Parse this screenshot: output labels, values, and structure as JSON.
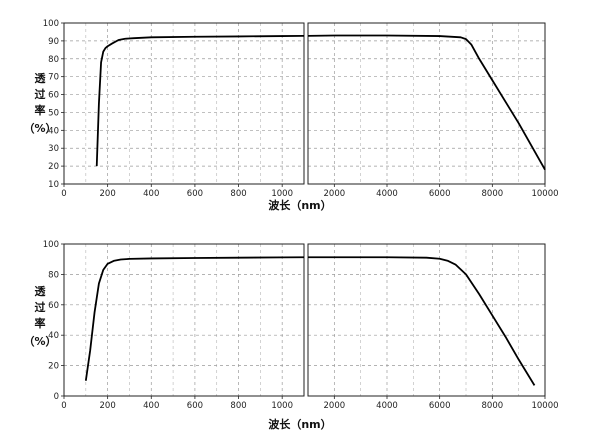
{
  "chart_data": [
    {
      "type": "line",
      "ylabel_chars": [
        "透",
        "过",
        "率",
        "（%）"
      ],
      "xlabel": "波长（nm）",
      "ylim": [
        10,
        100
      ],
      "yticks": [
        "10",
        "20",
        "30",
        "40",
        "50",
        "60",
        "70",
        "80",
        "90",
        "100"
      ],
      "grid": true,
      "panels": [
        {
          "xlim": [
            0,
            1100
          ],
          "xticks": [
            "0",
            "200",
            "400",
            "600",
            "800",
            "1000"
          ],
          "series": [
            {
              "x": [
                150,
                160,
                170,
                180,
                190,
                200,
                220,
                250,
                280,
                320,
                400,
                600,
                800,
                1000,
                1100
              ],
              "y": [
                20,
                55,
                78,
                84,
                86,
                87,
                88.5,
                90.5,
                91.2,
                91.5,
                92,
                92.3,
                92.5,
                92.7,
                92.8
              ]
            }
          ]
        },
        {
          "xlim": [
            1000,
            10000
          ],
          "xticks": [
            "2000",
            "4000",
            "6000",
            "8000",
            "10000"
          ],
          "series": [
            {
              "x": [
                1000,
                2000,
                4000,
                6000,
                6800,
                7000,
                7200,
                7500,
                8000,
                9000,
                10000
              ],
              "y": [
                92.8,
                93,
                93,
                92.7,
                92,
                91,
                88,
                80,
                68,
                44,
                18
              ]
            }
          ]
        }
      ]
    },
    {
      "type": "line",
      "ylabel_chars": [
        "透",
        "过",
        "率",
        "（%）"
      ],
      "xlabel": "波长（nm）",
      "ylim": [
        0,
        100
      ],
      "yticks": [
        "0",
        "20",
        "40",
        "60",
        "80",
        "100"
      ],
      "grid": true,
      "panels": [
        {
          "xlim": [
            0,
            1100
          ],
          "xticks": [
            "0",
            "200",
            "400",
            "600",
            "800",
            "1000"
          ],
          "series": [
            {
              "x": [
                100,
                120,
                140,
                160,
                180,
                200,
                230,
                260,
                300,
                400,
                600,
                800,
                1000,
                1100
              ],
              "y": [
                10,
                30,
                55,
                74,
                83,
                87,
                89,
                89.8,
                90.2,
                90.5,
                90.8,
                91,
                91.2,
                91.3
              ]
            }
          ]
        },
        {
          "xlim": [
            1000,
            10000
          ],
          "xticks": [
            "2000",
            "4000",
            "6000",
            "8000",
            "10000"
          ],
          "series": [
            {
              "x": [
                1000,
                2000,
                4000,
                5500,
                6000,
                6300,
                6600,
                7000,
                7500,
                8000,
                8500,
                9000,
                9600
              ],
              "y": [
                91.3,
                91.3,
                91.3,
                91,
                90.3,
                89,
                86.5,
                80,
                67,
                53,
                39,
                24,
                7
              ]
            }
          ]
        }
      ]
    }
  ]
}
